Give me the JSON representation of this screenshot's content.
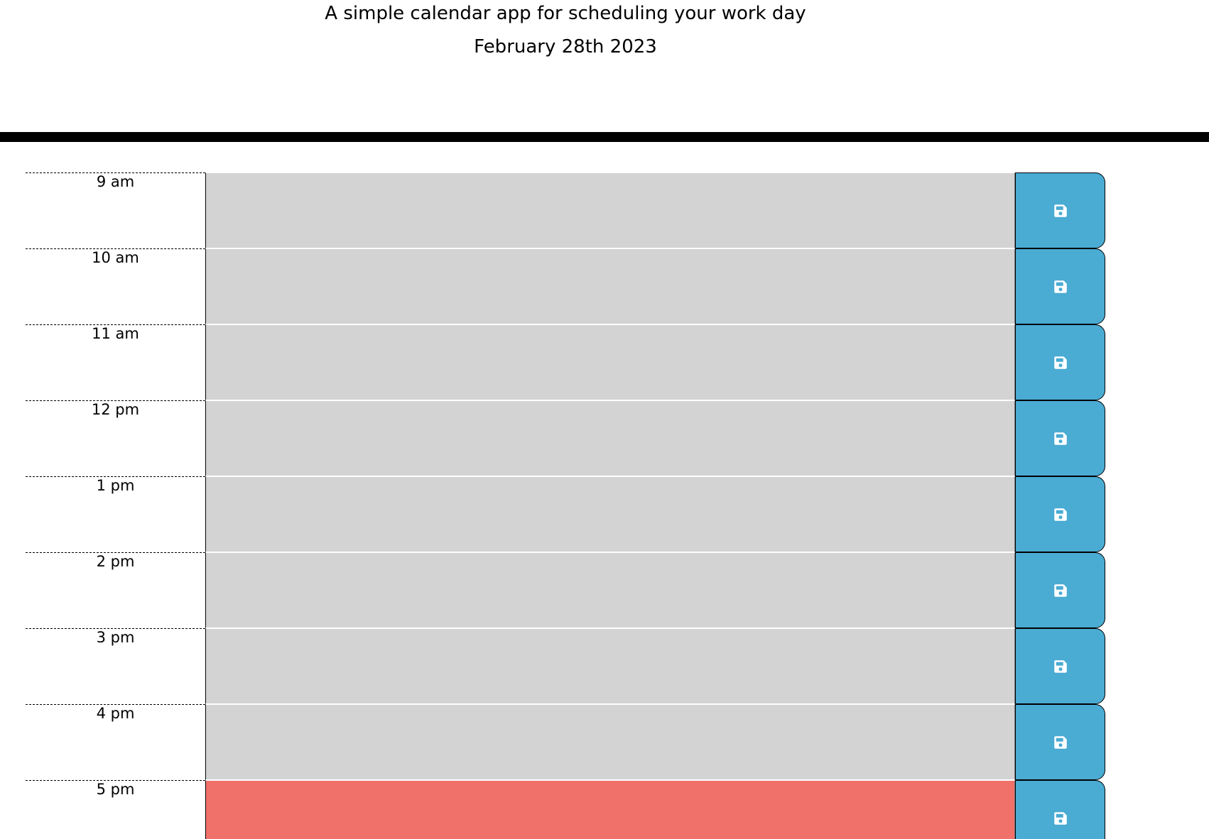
{
  "header": {
    "lead": "A simple calendar app for scheduling your work day",
    "current_day": "February 28th 2023"
  },
  "colors": {
    "past": "#d3d3d3",
    "present": "#ef7169",
    "save_button": "#4aabd3"
  },
  "time_blocks": [
    {
      "hour": "9 am",
      "status": "past",
      "description": "",
      "icon": "floppy-disk-icon"
    },
    {
      "hour": "10 am",
      "status": "past",
      "description": "",
      "icon": "floppy-disk-icon"
    },
    {
      "hour": "11 am",
      "status": "past",
      "description": "",
      "icon": "floppy-disk-icon"
    },
    {
      "hour": "12 pm",
      "status": "past",
      "description": "",
      "icon": "floppy-disk-icon"
    },
    {
      "hour": "1 pm",
      "status": "past",
      "description": "",
      "icon": "floppy-disk-icon"
    },
    {
      "hour": "2 pm",
      "status": "past",
      "description": "",
      "icon": "floppy-disk-icon"
    },
    {
      "hour": "3 pm",
      "status": "past",
      "description": "",
      "icon": "floppy-disk-icon"
    },
    {
      "hour": "4 pm",
      "status": "past",
      "description": "",
      "icon": "floppy-disk-icon"
    },
    {
      "hour": "5 pm",
      "status": "present",
      "description": "",
      "icon": "floppy-disk-icon"
    }
  ]
}
